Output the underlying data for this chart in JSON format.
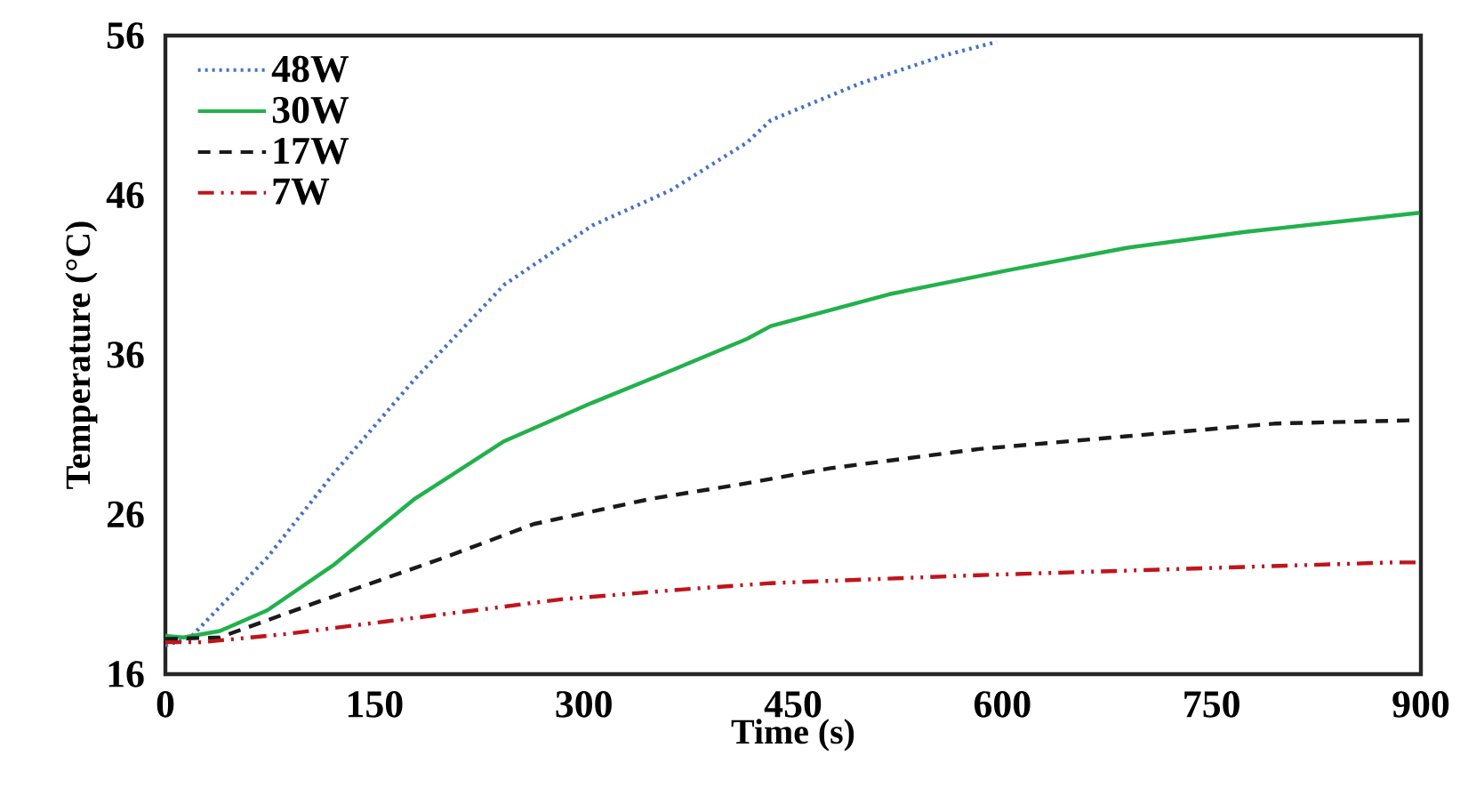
{
  "chart_data": {
    "type": "line",
    "xlabel": "Time (s)",
    "ylabel": "Temperature (°C)",
    "xlim": [
      0,
      900
    ],
    "xticks": [
      0,
      150,
      300,
      450,
      600,
      750,
      900
    ],
    "ylim": [
      16,
      56
    ],
    "yticks": [
      16,
      26,
      36,
      46,
      56
    ],
    "grid": false,
    "legend": "top left",
    "marker": "none",
    "series": [
      {
        "name": "48W",
        "color": "#4472c4",
        "line_style": "dotted",
        "x": [
          0,
          18,
          73,
          120,
          179,
          243,
          306,
          362,
          417,
          434,
          498,
          560,
          596
        ],
        "values": [
          17.8,
          18.3,
          23.3,
          28.5,
          34.5,
          40.4,
          44.1,
          46.3,
          49.3,
          50.7,
          53.0,
          54.8,
          55.6
        ]
      },
      {
        "name": "30W",
        "color": "#22b14c",
        "line_style": "solid",
        "x": [
          0,
          13,
          39,
          73,
          120,
          179,
          243,
          306,
          362,
          417,
          434,
          519,
          604,
          689,
          774,
          899
        ],
        "values": [
          18.4,
          18.3,
          18.7,
          20.0,
          22.8,
          27.0,
          30.6,
          33.0,
          35.0,
          37.0,
          37.8,
          39.8,
          41.3,
          42.7,
          43.7,
          44.9
        ]
      },
      {
        "name": "17W",
        "color": "#1a1a1a",
        "line_style": "dashed",
        "x": [
          0,
          39,
          115,
          200,
          264,
          349,
          413,
          477,
          583,
          689,
          796,
          893
        ],
        "values": [
          18.2,
          18.3,
          20.7,
          23.3,
          25.4,
          27.0,
          27.9,
          28.9,
          30.1,
          30.9,
          31.7,
          31.9
        ]
      },
      {
        "name": "7W",
        "color": "#c0141c",
        "line_style": "dashdotdot",
        "x": [
          0,
          26,
          85,
          158,
          222,
          285,
          370,
          434,
          583,
          732,
          880,
          900
        ],
        "values": [
          18.0,
          18.0,
          18.5,
          19.3,
          20.0,
          20.7,
          21.3,
          21.7,
          22.2,
          22.6,
          23.0,
          23.0
        ]
      }
    ]
  }
}
